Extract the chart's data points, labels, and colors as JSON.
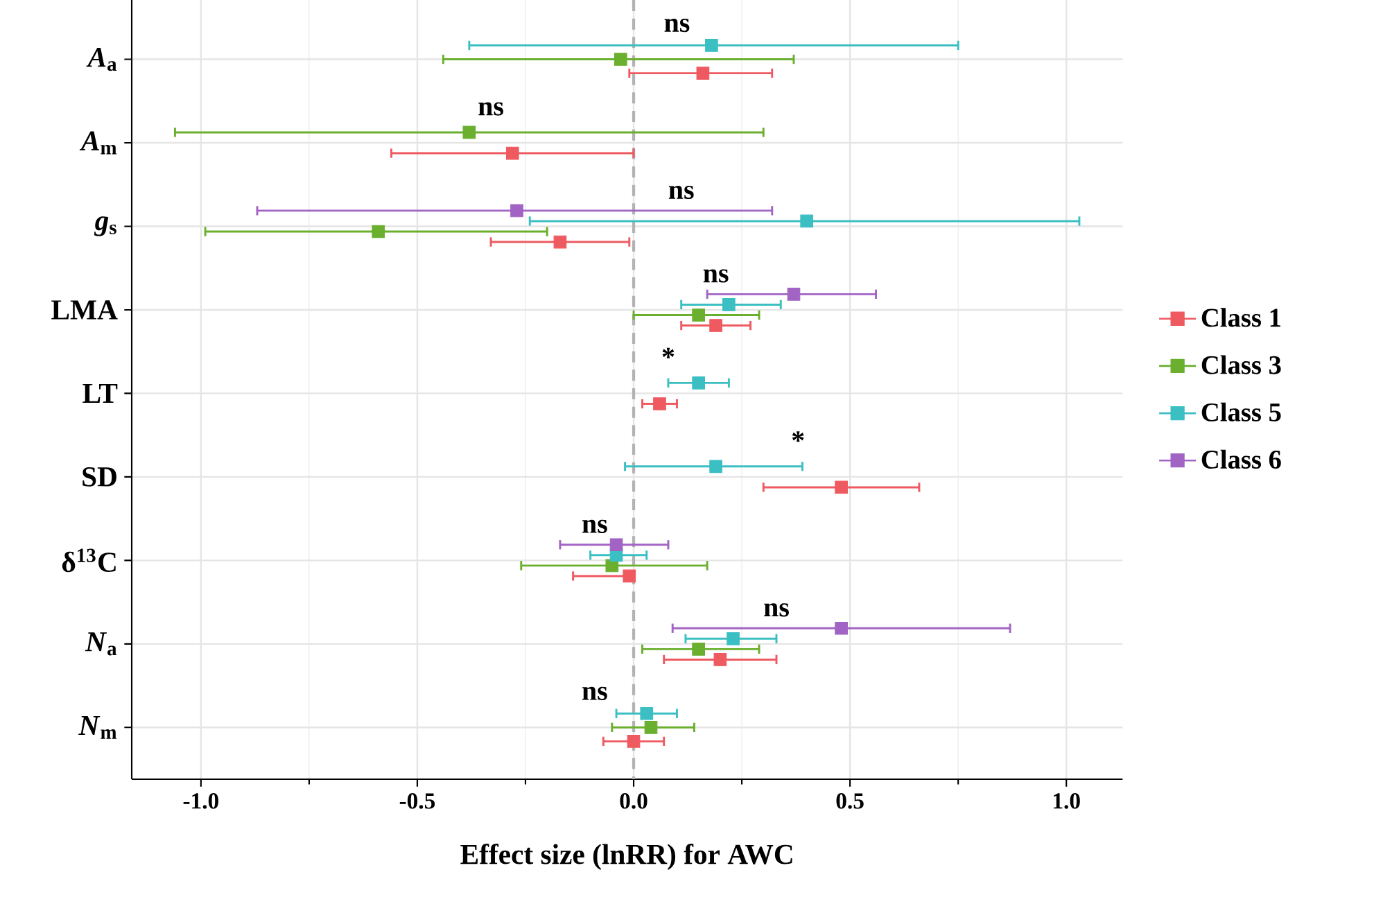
{
  "chart_data": {
    "type": "scatter",
    "orientation": "horizontal",
    "xlabel": "Effect size (lnRR) for AWC",
    "categories": [
      "*A*$_{a}$",
      "*A*$_{m}$",
      "*g*$_{s}$",
      "LMA",
      "LT",
      "SD",
      "δ$^{13}$C",
      "*N*$_{a}$",
      "*N*$_{m}$"
    ],
    "xlim": [
      -1.16,
      1.13
    ],
    "xticks": [
      {
        "value": -1,
        "label": "-1.0"
      },
      {
        "value": -0.5,
        "label": "-0.5"
      },
      {
        "value": 0,
        "label": "0.0"
      },
      {
        "value": 0.5,
        "label": "0.5"
      },
      {
        "value": 1,
        "label": "1.0"
      }
    ],
    "grid": true,
    "legend": "right",
    "marker": "square",
    "ref_lines": [
      {
        "axis": "x",
        "value": 0,
        "color": "#b3b3b3",
        "line_style": "dashed"
      }
    ],
    "annotations": [
      "ns",
      "ns",
      "ns",
      "ns",
      "*",
      "*",
      "ns",
      "ns",
      "ns"
    ],
    "series": [
      {
        "name": "Class 1",
        "color": "#ee5a60",
        "values": [
          0.16,
          -0.28,
          -0.17,
          0.19,
          0.06,
          0.48,
          -0.01,
          0.2,
          0.0
        ],
        "errors": [
          [
            -0.01,
            0.32
          ],
          [
            -0.56,
            0.0
          ],
          [
            -0.33,
            -0.01
          ],
          [
            0.11,
            0.27
          ],
          [
            0.02,
            0.1
          ],
          [
            0.3,
            0.66
          ],
          [
            -0.14,
            0.0
          ],
          [
            0.07,
            0.33
          ],
          [
            -0.07,
            0.07
          ]
        ]
      },
      {
        "name": "Class 3",
        "color": "#6aaf2e",
        "values": [
          -0.03,
          -0.38,
          -0.59,
          0.15,
          null,
          null,
          -0.05,
          0.15,
          0.04
        ],
        "errors": [
          [
            -0.44,
            0.37
          ],
          [
            -1.06,
            0.3
          ],
          [
            -0.99,
            -0.2
          ],
          [
            0.0,
            0.29
          ],
          null,
          null,
          [
            -0.26,
            0.17
          ],
          [
            0.02,
            0.29
          ],
          [
            -0.05,
            0.14
          ]
        ]
      },
      {
        "name": "Class 5",
        "color": "#3cbfc3",
        "values": [
          0.18,
          null,
          0.4,
          0.22,
          0.15,
          0.19,
          -0.04,
          0.23,
          0.03
        ],
        "errors": [
          [
            -0.38,
            0.75
          ],
          null,
          [
            -0.24,
            1.03
          ],
          [
            0.11,
            0.34
          ],
          [
            0.08,
            0.22
          ],
          [
            -0.02,
            0.39
          ],
          [
            -0.1,
            0.03
          ],
          [
            0.12,
            0.33
          ],
          [
            -0.04,
            0.1
          ]
        ]
      },
      {
        "name": "Class 6",
        "color": "#a264c4",
        "values": [
          null,
          null,
          -0.27,
          0.37,
          null,
          null,
          -0.04,
          0.48,
          null
        ],
        "errors": [
          null,
          null,
          [
            -0.87,
            0.32
          ],
          [
            0.17,
            0.56
          ],
          null,
          null,
          [
            -0.17,
            0.08
          ],
          [
            0.09,
            0.87
          ],
          null
        ]
      }
    ]
  }
}
